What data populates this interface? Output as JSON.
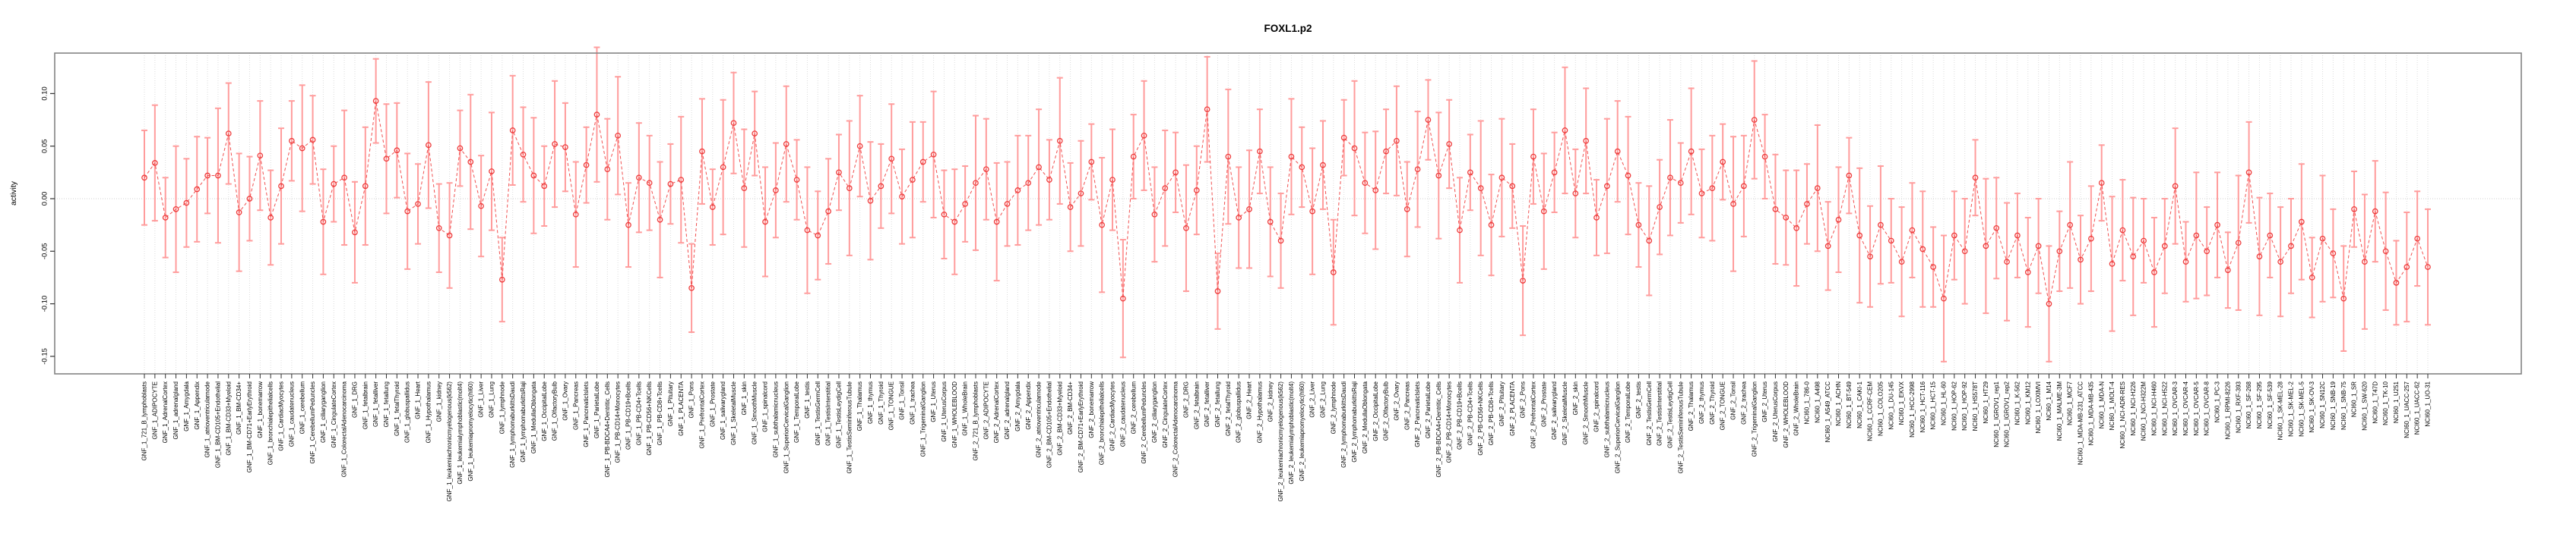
{
  "chart_data": {
    "type": "line",
    "title": "FOXL1.p2",
    "ylabel": "activity",
    "xlabel": "",
    "ytick_labels": [
      "0.10",
      "0.05",
      "0.00",
      "-0.05",
      "-0.10",
      "-0.15"
    ],
    "ylim": [
      -0.167,
      0.138
    ],
    "legend": "none",
    "grid": "vertical dotted line at every category; dotted horizontal line at zero",
    "style": "open red circles with salmon error bars and dashed red connecting line (R plotCI style)",
    "colors": {
      "error_bar": "#ff9c9c",
      "point": "#ee3c3c",
      "line": "#f05050",
      "grid": "#dcdcdc",
      "zero_line": "#cfcfcf",
      "box": "#848484",
      "tick": "#333333",
      "text": "#000000",
      "background": "#ffffff"
    },
    "groups": [
      {
        "prefix": "GNF_1_",
        "count": 79
      },
      {
        "prefix": "GNF_2_",
        "count": 79
      },
      {
        "prefix": "NCI60_1_",
        "count": 60
      }
    ],
    "categories": [
      "GNF_1_721_B_lymphoblasts",
      "GNF_1_ADIPOCYTE",
      "GNF_1_AdrenalCortex",
      "GNF_1_adrenalgland",
      "GNF_1_Amygdala",
      "GNF_1_Appendix",
      "GNF_1_atrioventricularnode",
      "GNF_1_BM-CD105+Endothelial",
      "GNF_1_BM-CD33+Myeloid",
      "GNF_1_BM-CD34+",
      "GNF_1_BM-CD71+EarlyErythroid",
      "GNF_1_bonemarrow",
      "GNF_1_bronchialepithelialcells",
      "GNF_1_CardiacMyocytes",
      "GNF_1_caudatenucleus",
      "GNF_1_cerebellum",
      "GNF_1_CerebellumPeduncles",
      "GNF_1_ciliaryganglion",
      "GNF_1_CingulateCortex",
      "GNF_1_ColorectalAdenocarcinoma",
      "GNF_1_DRG",
      "GNF_1_fetalbrain",
      "GNF_1_fetalliver",
      "GNF_1_fetallung",
      "GNF_1_fetalThyroid",
      "GNF_1_globuspallidus",
      "GNF_1_Heart",
      "GNF_1_Hypothalamus",
      "GNF_1_kidney",
      "GNF_1_leukemiachronicmyelogenous(k562)",
      "GNF_1_leukemialymphoblastic(molt4)",
      "GNF_1_leukemiapromyelocytic(hl60)",
      "GNF_1_Liver",
      "GNF_1_Lung",
      "GNF_1_lymphnode",
      "GNF_1_lymphomaburkittsDaudi",
      "GNF_1_lymphomaburkittsRaji",
      "GNF_1_MedullaOblongata",
      "GNF_1_OccipitalLobe",
      "GNF_1_OlfactoryBulb",
      "GNF_1_Ovary",
      "GNF_1_Pancreas",
      "GNF_1_PancreaticIslets",
      "GNF_1_ParietalLobe",
      "GNF_1_PB-BDCA4+Dentritic_Cells",
      "GNF_1_PB-CD14+Monocytes",
      "GNF_1_PB-CD19+Bcells",
      "GNF_1_PB-CD4+Tcells",
      "GNF_1_PB-CD56+NKCells",
      "GNF_1_PB-CD8+Tcells",
      "GNF_1_Pituitary",
      "GNF_1_PLACENTA",
      "GNF_1_Pons",
      "GNF_1_PrefrontalCortex",
      "GNF_1_Prostate",
      "GNF_1_salivarygland",
      "GNF_1_SkeletalMuscle",
      "GNF_1_skin",
      "GNF_1_SmoothMuscle",
      "GNF_1_spinalcord",
      "GNF_1_subthalamicnucleus",
      "GNF_1_SuperiorCervicalGanglion",
      "GNF_1_TemporalLobe",
      "GNF_1_testis",
      "GNF_1_TestisGermCell",
      "GNF_1_TestisInterstitial",
      "GNF_1_TestisLeydigCell",
      "GNF_1_TestisSeminiferousTubule",
      "GNF_1_Thalamus",
      "GNF_1_thymus",
      "GNF_1_Thyroid",
      "GNF_1_TONGUE",
      "GNF_1_Tonsil",
      "GNF_1_trachea",
      "GNF_1_TrigeminalGanglion",
      "GNF_1_Uterus",
      "GNF_1_UterusCorpus",
      "GNF_1_WHOLEBLOOD",
      "GNF_1_WholeBrain",
      "GNF_2_721_B_lymphoblasts",
      "GNF_2_ADIPOCYTE",
      "GNF_2_AdrenalCortex",
      "GNF_2_adrenalgland",
      "GNF_2_Amygdala",
      "GNF_2_Appendix",
      "GNF_2_atrioventricularnode",
      "GNF_2_BM-CD105+Endothelial",
      "GNF_2_BM-CD33+Myeloid",
      "GNF_2_BM-CD34+",
      "GNF_2_BM-CD71+EarlyErythroid",
      "GNF_2_bonemarrow",
      "GNF_2_bronchialepithelialcells",
      "GNF_2_CardiacMyocytes",
      "GNF_2_caudatenucleus",
      "GNF_2_cerebellum",
      "GNF_2_CerebellumPeduncles",
      "GNF_2_ciliaryganglion",
      "GNF_2_CingulateCortex",
      "GNF_2_ColorectalAdenocarcinoma",
      "GNF_2_DRG",
      "GNF_2_fetalbrain",
      "GNF_2_fetalliver",
      "GNF_2_fetallung",
      "GNF_2_fetalThyroid",
      "GNF_2_globuspallidus",
      "GNF_2_Heart",
      "GNF_2_Hypothalamus",
      "GNF_2_kidney",
      "GNF_2_leukemiachronicmyelogenous(k562)",
      "GNF_2_leukemialymphoblastic(molt4)",
      "GNF_2_leukemiapromyelocytic(hl60)",
      "GNF_2_Liver",
      "GNF_2_Lung",
      "GNF_2_lymphnode",
      "GNF_2_lymphomaburkittsDaudi",
      "GNF_2_lymphomaburkittsRaji",
      "GNF_2_MedullaOblongata",
      "GNF_2_OccipitalLobe",
      "GNF_2_OlfactoryBulb",
      "GNF_2_Ovary",
      "GNF_2_Pancreas",
      "GNF_2_PancreaticIslets",
      "GNF_2_ParietalLobe",
      "GNF_2_PB-BDCA4+Dentritic_Cells",
      "GNF_2_PB-CD14+Monocytes",
      "GNF_2_PB-CD19+Bcells",
      "GNF_2_PB-CD4+Tcells",
      "GNF_2_PB-CD56+NKCells",
      "GNF_2_PB-CD8+Tcells",
      "GNF_2_Pituitary",
      "GNF_2_PLACENTA",
      "GNF_2_Pons",
      "GNF_2_PrefrontalCortex",
      "GNF_2_Prostate",
      "GNF_2_salivarygland",
      "GNF_2_SkeletalMuscle",
      "GNF_2_skin",
      "GNF_2_SmoothMuscle",
      "GNF_2_spinalcord",
      "GNF_2_subthalamicnucleus",
      "GNF_2_SuperiorCervicalGanglion",
      "GNF_2_TemporalLobe",
      "GNF_2_testis",
      "GNF_2_TestisGermCell",
      "GNF_2_TestisInterstitial",
      "GNF_2_TestisLeydigCell",
      "GNF_2_TestisSeminiferousTubule",
      "GNF_2_Thalamus",
      "GNF_2_thymus",
      "GNF_2_Thyroid",
      "GNF_2_TONGUE",
      "GNF_2_Tonsil",
      "GNF_2_trachea",
      "GNF_2_TrigeminalGanglion",
      "GNF_2_Uterus",
      "GNF_2_UterusCorpus",
      "GNF_2_WHOLEBLOOD",
      "GNF_2_WholeBrain",
      "NCI60_1_786-0",
      "NCI60_1_A498",
      "NCI60_1_A549_ATCC",
      "NCI60_1_ACHN",
      "NCI60_1_BT-549",
      "NCI60_1_CAKI-1",
      "NCI60_1_CCRF-CEM",
      "NCI60_1_COLO205",
      "NCI60_1_DU-145",
      "NCI60_1_EKVX",
      "NCI60_1_HCC-2998",
      "NCI60_1_HCT-116",
      "NCI60_1_HCT-15",
      "NCI60_1_HL-60",
      "NCI60_1_HOP-62",
      "NCI60_1_HOP-92",
      "NCI60_1_HS578T",
      "NCI60_1_HT29",
      "NCI60_1_IGROV1_rep1",
      "NCI60_1_IGROV1_rep2",
      "NCI60_1_K-562",
      "NCI60_1_KM12",
      "NCI60_1_LOXIMVI",
      "NCI60_1_M14",
      "NCI60_1_MALME-3M",
      "NCI60_1_MCF7",
      "NCI60_1_MDA-MB-231_ATCC",
      "NCI60_1_MDA-MB-435",
      "NCI60_1_MDA-N",
      "NCI60_1_MOLT-4",
      "NCI60_1_NCI-ADR-RES",
      "NCI60_1_NCI-H226",
      "NCI60_1_NCI-H322M",
      "NCI60_1_NCI-H460",
      "NCI60_1_NCI-H522",
      "NCI60_1_OVCAR-3",
      "NCI60_1_OVCAR-4",
      "NCI60_1_OVCAR-5",
      "NCI60_1_OVCAR-8",
      "NCI60_1_PC-3",
      "NCI60_1_RPMI-8226",
      "NCI60_1_RXF-393",
      "NCI60_1_SF-268",
      "NCI60_1_SF-295",
      "NCI60_1_SF-539",
      "NCI60_1_SK-MEL-28",
      "NCI60_1_SK-MEL-2",
      "NCI60_1_SK-MEL-5",
      "NCI60_1_SK-OV-3",
      "NCI60_1_SN12C",
      "NCI60_1_SNB-19",
      "NCI60_1_SNB-75",
      "NCI60_1_SR",
      "NCI60_1_SW-620",
      "NCI60_1_T47D",
      "NCI60_1_TK-10",
      "NCI60_1_U251",
      "NCI60_1_UACC-257",
      "NCI60_1_UACC-62",
      "NCI60_1_UO-31"
    ],
    "values": [
      0.02,
      0.034,
      -0.018,
      -0.01,
      -0.004,
      0.009,
      0.022,
      0.022,
      0.062,
      -0.013,
      0.0,
      0.041,
      -0.018,
      0.012,
      0.055,
      0.048,
      0.056,
      -0.022,
      0.014,
      0.02,
      -0.032,
      0.012,
      0.093,
      0.038,
      0.046,
      -0.012,
      -0.005,
      0.051,
      -0.028,
      -0.035,
      0.048,
      0.035,
      -0.007,
      0.026,
      -0.077,
      0.065,
      0.042,
      0.022,
      0.012,
      0.052,
      0.049,
      -0.015,
      0.032,
      0.08,
      0.028,
      0.06,
      -0.025,
      0.02,
      0.015,
      -0.02,
      0.014,
      0.018,
      -0.085,
      0.045,
      -0.008,
      0.03,
      0.072,
      0.01,
      0.062,
      -0.022,
      0.008,
      0.052,
      0.018,
      -0.03,
      -0.035,
      -0.012,
      0.025,
      0.01,
      0.05,
      -0.002,
      0.012,
      0.038,
      0.002,
      0.018,
      0.035,
      0.042,
      -0.015,
      -0.022,
      -0.005,
      0.015,
      0.028,
      -0.022,
      -0.005,
      0.008,
      0.015,
      0.03,
      0.018,
      0.055,
      -0.008,
      0.005,
      0.035,
      -0.025,
      0.018,
      -0.095,
      0.04,
      0.06,
      -0.015,
      0.01,
      0.025,
      -0.028,
      0.008,
      0.085,
      -0.088,
      0.04,
      -0.018,
      -0.01,
      0.045,
      -0.022,
      -0.04,
      0.04,
      0.03,
      -0.012,
      0.032,
      -0.07,
      0.058,
      0.048,
      0.015,
      0.008,
      0.045,
      0.055,
      -0.01,
      0.028,
      0.075,
      0.022,
      0.052,
      -0.03,
      0.025,
      0.01,
      -0.025,
      0.02,
      0.012,
      -0.078,
      0.04,
      -0.012,
      0.025,
      0.065,
      0.005,
      0.055,
      -0.018,
      0.012,
      0.045,
      0.022,
      -0.025,
      -0.04,
      -0.008,
      0.02,
      0.015,
      0.045,
      0.005,
      0.01,
      0.035,
      -0.005,
      0.012,
      0.075,
      0.04,
      -0.01,
      -0.018,
      -0.028,
      -0.005,
      0.01,
      -0.045,
      -0.02,
      0.022,
      -0.035,
      -0.055,
      -0.025,
      -0.04,
      -0.06,
      -0.03,
      -0.048,
      -0.065,
      -0.095,
      -0.035,
      -0.05,
      0.02,
      -0.045,
      -0.028,
      -0.06,
      -0.035,
      -0.07,
      -0.045,
      -0.1,
      -0.05,
      -0.025,
      -0.058,
      -0.038,
      0.015,
      -0.062,
      -0.03,
      -0.055,
      -0.04,
      -0.07,
      -0.045,
      0.012,
      -0.06,
      -0.035,
      -0.05,
      -0.025,
      -0.068,
      -0.042,
      0.025,
      -0.055,
      -0.035,
      -0.06,
      -0.045,
      -0.022,
      -0.075,
      -0.038,
      -0.052,
      -0.095,
      -0.01,
      -0.06,
      -0.012,
      -0.05,
      -0.08,
      -0.065,
      -0.038,
      -0.065
    ],
    "errors": [
      0.045,
      0.055,
      0.038,
      0.06,
      0.042,
      0.05,
      0.036,
      0.064,
      0.048,
      0.056,
      0.04,
      0.052,
      0.045,
      0.055,
      0.038,
      0.06,
      0.042,
      0.05,
      0.036,
      0.064,
      0.048,
      0.056,
      0.04,
      0.052,
      0.045,
      0.055,
      0.038,
      0.06,
      0.042,
      0.05,
      0.036,
      0.064,
      0.048,
      0.056,
      0.04,
      0.052,
      0.045,
      0.055,
      0.038,
      0.06,
      0.042,
      0.05,
      0.036,
      0.064,
      0.048,
      0.056,
      0.04,
      0.052,
      0.045,
      0.055,
      0.038,
      0.06,
      0.042,
      0.05,
      0.036,
      0.064,
      0.048,
      0.056,
      0.04,
      0.052,
      0.045,
      0.055,
      0.038,
      0.06,
      0.042,
      0.05,
      0.036,
      0.064,
      0.048,
      0.056,
      0.04,
      0.052,
      0.045,
      0.055,
      0.038,
      0.06,
      0.042,
      0.05,
      0.036,
      0.064,
      0.048,
      0.056,
      0.04,
      0.052,
      0.045,
      0.055,
      0.038,
      0.06,
      0.042,
      0.05,
      0.036,
      0.064,
      0.048,
      0.056,
      0.04,
      0.052,
      0.045,
      0.055,
      0.038,
      0.06,
      0.042,
      0.05,
      0.036,
      0.064,
      0.048,
      0.056,
      0.04,
      0.052,
      0.045,
      0.055,
      0.038,
      0.06,
      0.042,
      0.05,
      0.036,
      0.064,
      0.048,
      0.056,
      0.04,
      0.052,
      0.045,
      0.055,
      0.038,
      0.06,
      0.042,
      0.05,
      0.036,
      0.064,
      0.048,
      0.056,
      0.04,
      0.052,
      0.045,
      0.055,
      0.038,
      0.06,
      0.042,
      0.05,
      0.036,
      0.064,
      0.048,
      0.056,
      0.04,
      0.052,
      0.045,
      0.055,
      0.038,
      0.06,
      0.042,
      0.05,
      0.036,
      0.064,
      0.048,
      0.056,
      0.04,
      0.052,
      0.045,
      0.055,
      0.038,
      0.06,
      0.042,
      0.05,
      0.036,
      0.064,
      0.048,
      0.056,
      0.04,
      0.052,
      0.045,
      0.055,
      0.038,
      0.06,
      0.042,
      0.05,
      0.036,
      0.064,
      0.048,
      0.056,
      0.04,
      0.052,
      0.045,
      0.055,
      0.038,
      0.06,
      0.042,
      0.05,
      0.036,
      0.064,
      0.048,
      0.056,
      0.04,
      0.052,
      0.045,
      0.055,
      0.038,
      0.06,
      0.042,
      0.05,
      0.036,
      0.064,
      0.048,
      0.056,
      0.04,
      0.052,
      0.045,
      0.055,
      0.038,
      0.06,
      0.042,
      0.05,
      0.036,
      0.064,
      0.048,
      0.056,
      0.04,
      0.052,
      0.045,
      0.055
    ]
  }
}
